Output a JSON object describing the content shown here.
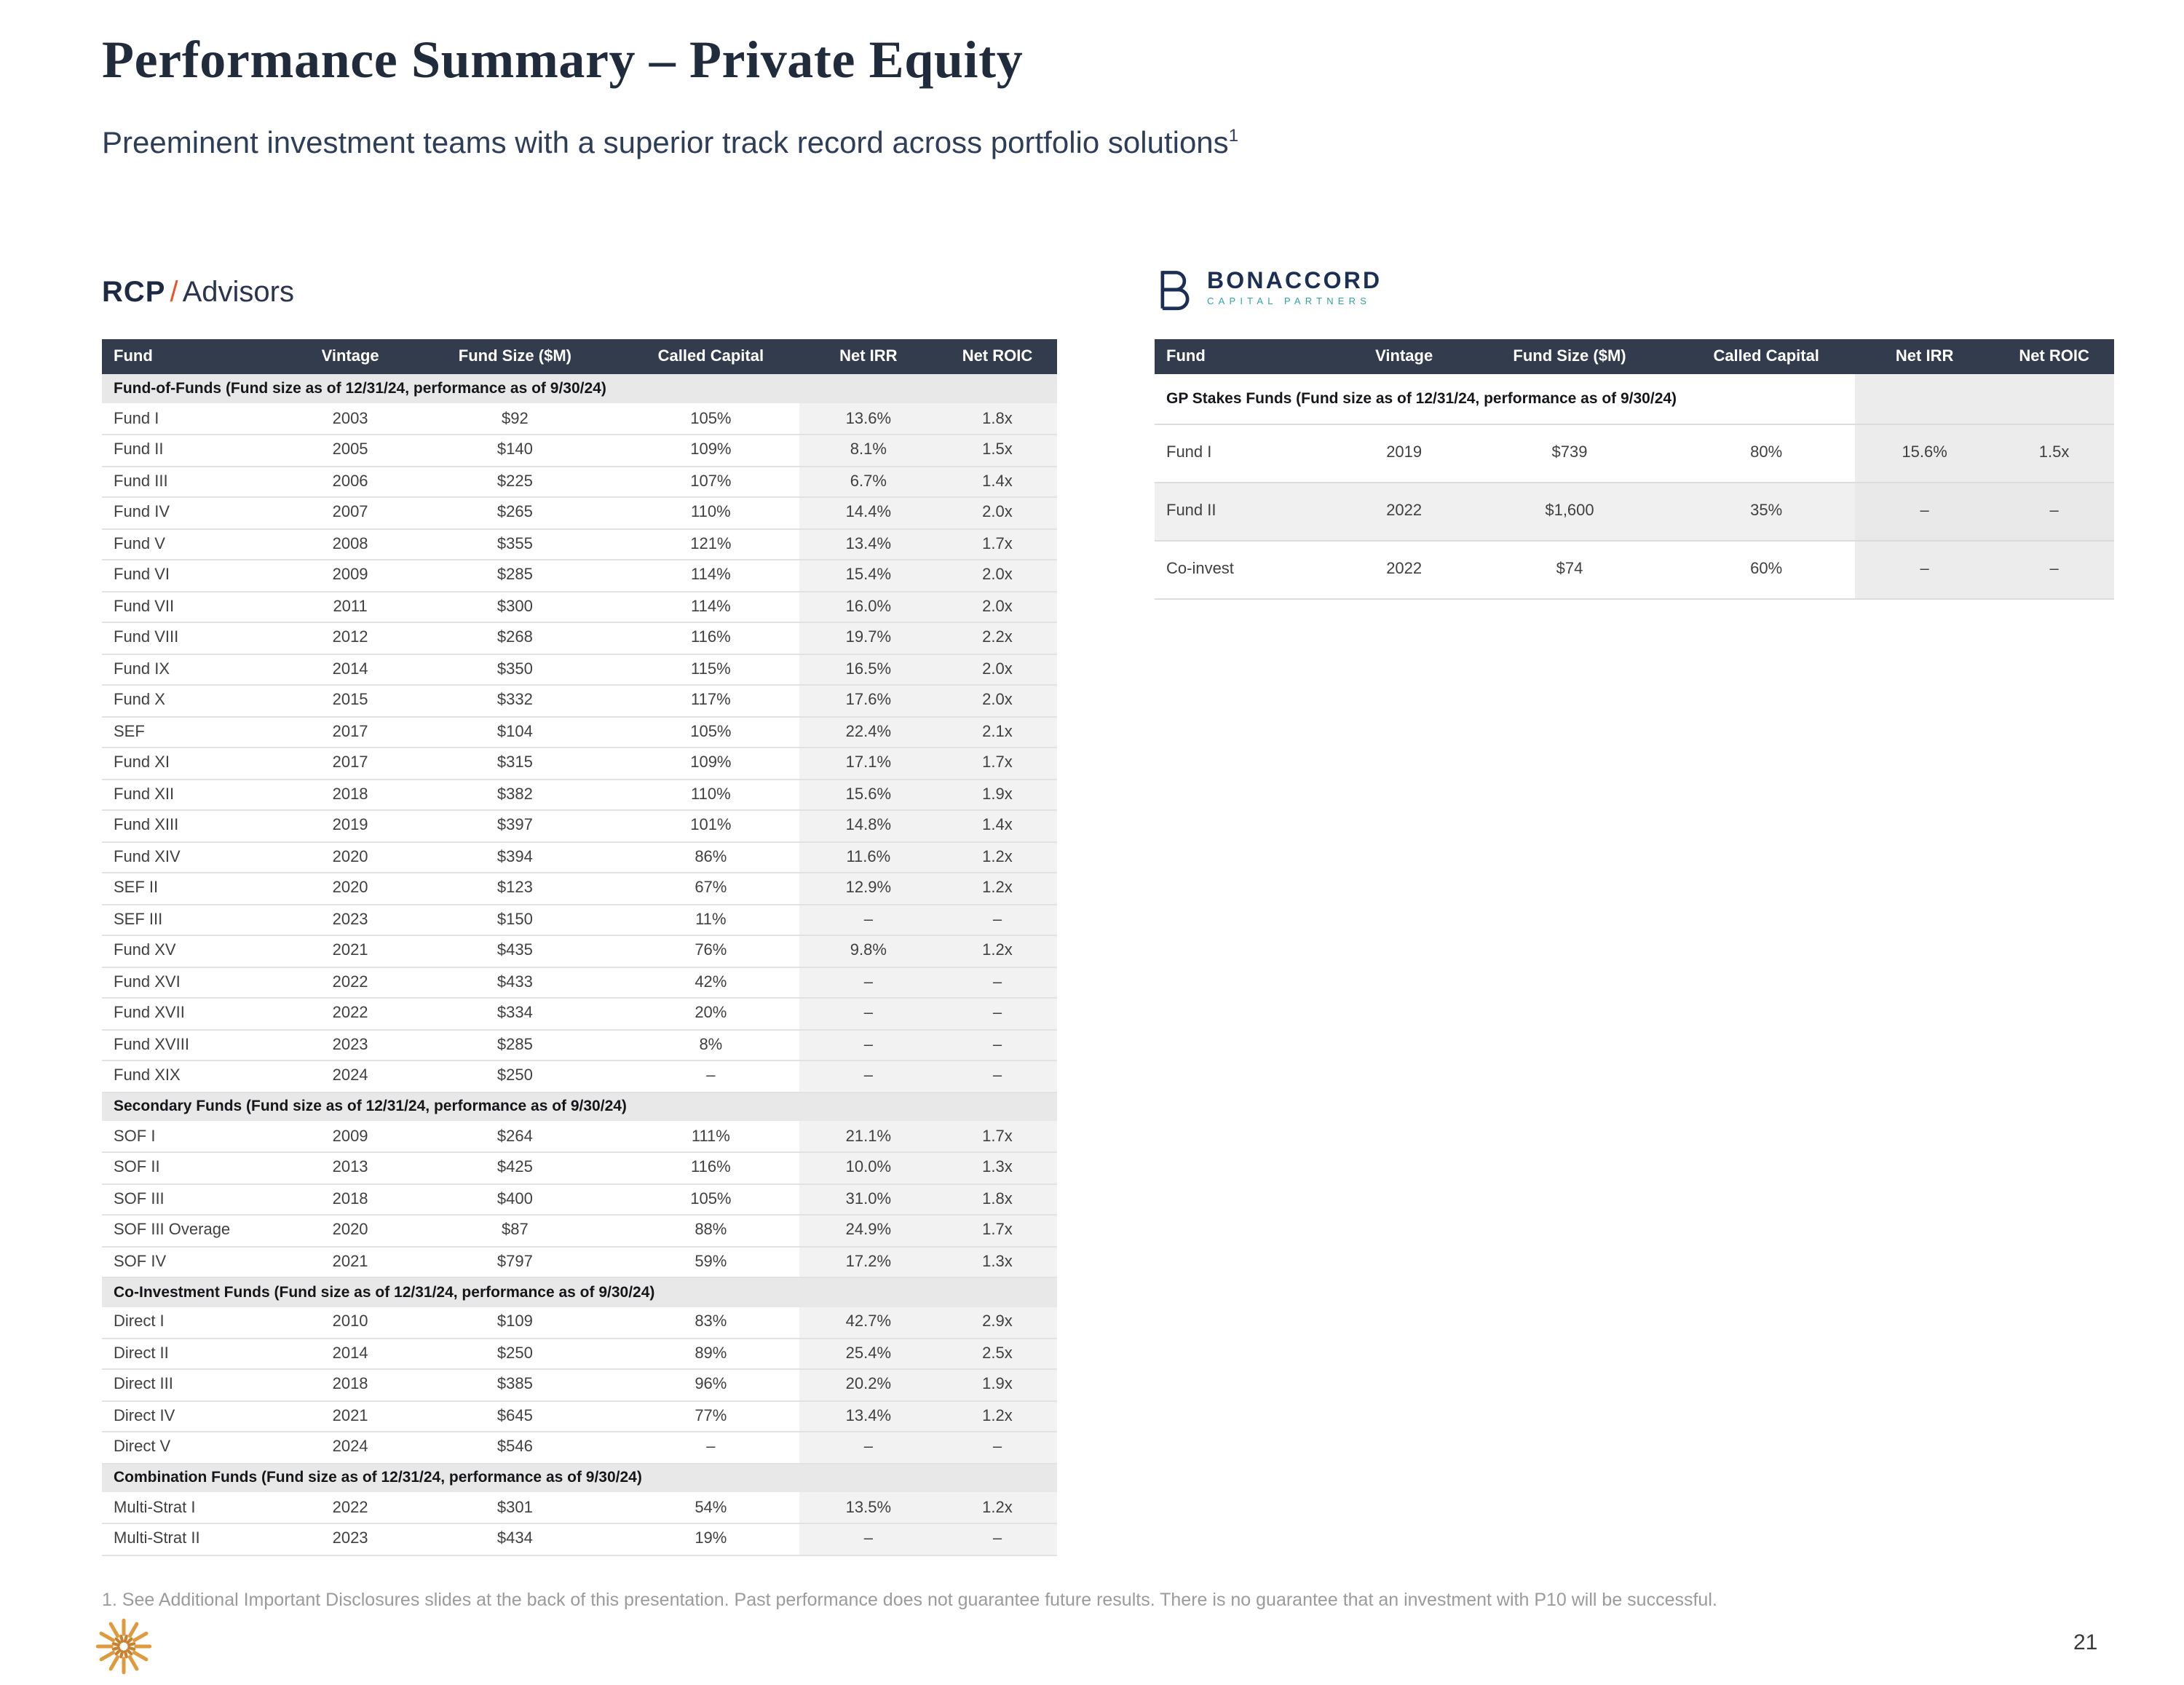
{
  "slide": {
    "title": "Performance Summary – Private Equity",
    "subtitle": "Preeminent investment teams with a superior track record across portfolio solutions",
    "subtitle_sup": "1",
    "footnote": "1.  See Additional Important Disclosures slides at the back of this presentation. Past performance does not guarantee future results. There is no guarantee that an investment with P10 will be successful.",
    "page_number": "21"
  },
  "brands": {
    "rcp": {
      "bold": "RCP",
      "slash": "/",
      "rest": "Advisors"
    },
    "bonaccord": {
      "name": "BONACCORD",
      "tagline": "CAPITAL PARTNERS"
    }
  },
  "colors": {
    "header_bg": "#323C4D",
    "header_text": "#FFFFFF",
    "section_bg": "#E8E8E8",
    "shaded_column_bg": "#F2F2F2",
    "accent_orange": "#E8552D",
    "p10_orange": "#E09A3E",
    "bonaccord_navy": "#1B2F55",
    "bonaccord_teal": "#2FA3A0",
    "title_navy": "#202B3C"
  },
  "icons": {
    "p10_logo": "starburst",
    "bonaccord_mark": "b-monogram"
  },
  "tables": [
    {
      "id": "left",
      "columns": [
        "Fund",
        "Vintage",
        "Fund Size ($M)",
        "Called Capital",
        "Net IRR",
        "Net ROIC"
      ],
      "sections": [
        {
          "label": "Fund-of-Funds (Fund size as of 12/31/24, performance as of 9/30/24)",
          "rows": [
            [
              "Fund I",
              "2003",
              "$92",
              "105%",
              "13.6%",
              "1.8x"
            ],
            [
              "Fund II",
              "2005",
              "$140",
              "109%",
              "8.1%",
              "1.5x"
            ],
            [
              "Fund III",
              "2006",
              "$225",
              "107%",
              "6.7%",
              "1.4x"
            ],
            [
              "Fund IV",
              "2007",
              "$265",
              "110%",
              "14.4%",
              "2.0x"
            ],
            [
              "Fund V",
              "2008",
              "$355",
              "121%",
              "13.4%",
              "1.7x"
            ],
            [
              "Fund VI",
              "2009",
              "$285",
              "114%",
              "15.4%",
              "2.0x"
            ],
            [
              "Fund VII",
              "2011",
              "$300",
              "114%",
              "16.0%",
              "2.0x"
            ],
            [
              "Fund VIII",
              "2012",
              "$268",
              "116%",
              "19.7%",
              "2.2x"
            ],
            [
              "Fund IX",
              "2014",
              "$350",
              "115%",
              "16.5%",
              "2.0x"
            ],
            [
              "Fund X",
              "2015",
              "$332",
              "117%",
              "17.6%",
              "2.0x"
            ],
            [
              "SEF",
              "2017",
              "$104",
              "105%",
              "22.4%",
              "2.1x"
            ],
            [
              "Fund XI",
              "2017",
              "$315",
              "109%",
              "17.1%",
              "1.7x"
            ],
            [
              "Fund XII",
              "2018",
              "$382",
              "110%",
              "15.6%",
              "1.9x"
            ],
            [
              "Fund XIII",
              "2019",
              "$397",
              "101%",
              "14.8%",
              "1.4x"
            ],
            [
              "Fund XIV",
              "2020",
              "$394",
              "86%",
              "11.6%",
              "1.2x"
            ],
            [
              "SEF II",
              "2020",
              "$123",
              "67%",
              "12.9%",
              "1.2x"
            ],
            [
              "SEF III",
              "2023",
              "$150",
              "11%",
              "–",
              "–"
            ],
            [
              "Fund XV",
              "2021",
              "$435",
              "76%",
              "9.8%",
              "1.2x"
            ],
            [
              "Fund XVI",
              "2022",
              "$433",
              "42%",
              "–",
              "–"
            ],
            [
              "Fund XVII",
              "2022",
              "$334",
              "20%",
              "–",
              "–"
            ],
            [
              "Fund XVIII",
              "2023",
              "$285",
              "8%",
              "–",
              "–"
            ],
            [
              "Fund XIX",
              "2024",
              "$250",
              "–",
              "–",
              "–"
            ]
          ]
        },
        {
          "label": "Secondary Funds (Fund size as of 12/31/24, performance as of 9/30/24)",
          "rows": [
            [
              "SOF I",
              "2009",
              "$264",
              "111%",
              "21.1%",
              "1.7x"
            ],
            [
              "SOF II",
              "2013",
              "$425",
              "116%",
              "10.0%",
              "1.3x"
            ],
            [
              "SOF III",
              "2018",
              "$400",
              "105%",
              "31.0%",
              "1.8x"
            ],
            [
              "SOF III Overage",
              "2020",
              "$87",
              "88%",
              "24.9%",
              "1.7x"
            ],
            [
              "SOF IV",
              "2021",
              "$797",
              "59%",
              "17.2%",
              "1.3x"
            ]
          ]
        },
        {
          "label": "Co-Investment Funds (Fund size as of 12/31/24, performance as of 9/30/24)",
          "rows": [
            [
              "Direct I",
              "2010",
              "$109",
              "83%",
              "42.7%",
              "2.9x"
            ],
            [
              "Direct II",
              "2014",
              "$250",
              "89%",
              "25.4%",
              "2.5x"
            ],
            [
              "Direct III",
              "2018",
              "$385",
              "96%",
              "20.2%",
              "1.9x"
            ],
            [
              "Direct IV",
              "2021",
              "$645",
              "77%",
              "13.4%",
              "1.2x"
            ],
            [
              "Direct V",
              "2024",
              "$546",
              "–",
              "–",
              "–"
            ]
          ]
        },
        {
          "label": "Combination Funds (Fund size as of 12/31/24, performance as of 9/30/24)",
          "rows": [
            [
              "Multi-Strat I",
              "2022",
              "$301",
              "54%",
              "13.5%",
              "1.2x"
            ],
            [
              "Multi-Strat II",
              "2023",
              "$434",
              "19%",
              "–",
              "–"
            ]
          ]
        }
      ]
    },
    {
      "id": "right",
      "columns": [
        "Fund",
        "Vintage",
        "Fund Size ($M)",
        "Called Capital",
        "Net IRR",
        "Net ROIC"
      ],
      "sections": [
        {
          "label": "GP Stakes Funds (Fund size as of 12/31/24, performance as of 9/30/24)",
          "rows": [
            [
              "Fund I",
              "2019",
              "$739",
              "80%",
              "15.6%",
              "1.5x"
            ],
            [
              "Fund II",
              "2022",
              "$1,600",
              "35%",
              "–",
              "–"
            ],
            [
              "Co-invest",
              "2022",
              "$74",
              "60%",
              "–",
              "–"
            ]
          ]
        }
      ]
    }
  ]
}
